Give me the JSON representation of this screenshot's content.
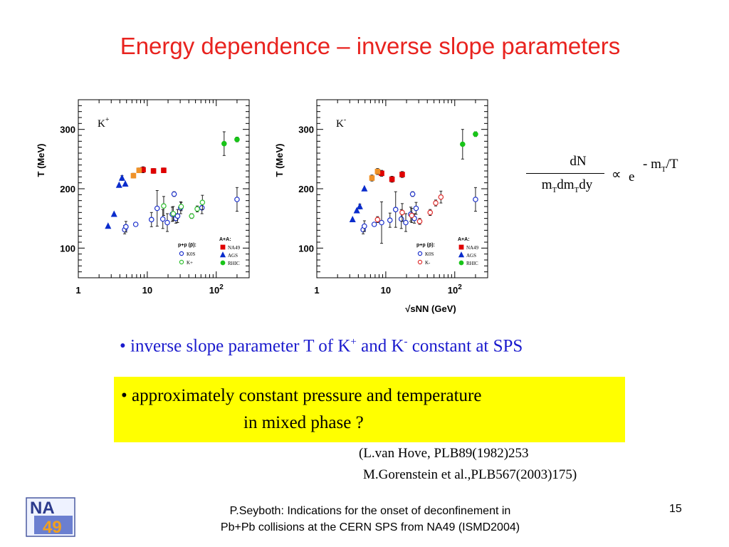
{
  "slide": {
    "title": "Energy dependence – inverse slope parameters",
    "bullet1": {
      "prefix": "• inverse slope parameter T of  K",
      "sup1": "+",
      "mid": " and K",
      "sup2": "-",
      "suffix": " constant at SPS"
    },
    "box_line1": "• approximately constant pressure and temperature",
    "box_line2": "in mixed phase ?",
    "ref1": "(L.van Hove, PLB89(1982)253",
    "ref2": "M.Gorenstein et al.,PLB567(2003)175)",
    "footer_line1": "P.Seyboth: Indications for the onset of deconfinement in",
    "footer_line2": "Pb+Pb collisions at the CERN SPS from NA49   (ISMD2004)",
    "page_number": "15",
    "logo_top": "NA",
    "logo_bottom": "49",
    "formula": {
      "numerator": "dN",
      "den_m1": "m",
      "den_sub1": "T",
      "den_dm": "dm",
      "den_sub2": "T",
      "den_dy": "dy",
      "prop": "∝",
      "e": "e",
      "exp_minus": "- m",
      "exp_sub": "T",
      "exp_tail": "/T"
    }
  },
  "colors": {
    "title": "#e8231f",
    "bullet": "#1a1acd",
    "box": "#ffff00",
    "na49": "#e00000",
    "ags": "#0a2ccc",
    "rhic": "#19c419",
    "orange": "#f09228",
    "pp_k0": "#1a2fcc",
    "pp_kplus": "#2fbf2f",
    "pp_kminus": "#e03030"
  },
  "chart_data": [
    {
      "type": "scatter",
      "label": "K",
      "label_sup": "+",
      "ylabel": "T (MeV)",
      "xlabel": "",
      "xscale": "log",
      "xlim": [
        1,
        300
      ],
      "ylim": [
        50,
        350
      ],
      "x_ticks": [
        "1",
        "10",
        "10^2"
      ],
      "y_ticks": [
        "100",
        "200",
        "300"
      ],
      "legend_pp_title": "p+p (p̄):",
      "legend_aa_title": "A+A:",
      "legend_pp": [
        "K0S",
        "K+"
      ],
      "legend_aa": [
        "NA49",
        "AGS",
        "RHIC"
      ],
      "series": [
        {
          "name": "AGS",
          "marker": "tri",
          "filled": true,
          "color": "#0a2ccc",
          "points": [
            [
              2.7,
              137,
              0
            ],
            [
              3.3,
              157,
              0
            ],
            [
              3.9,
              206,
              0
            ],
            [
              4.3,
              218,
              4
            ],
            [
              4.8,
              208,
              0
            ]
          ]
        },
        {
          "name": "NA49",
          "marker": "square",
          "filled": true,
          "color": "#e00000",
          "points": [
            [
              8.7,
              232,
              5
            ],
            [
              12.3,
              230,
              4
            ],
            [
              17.3,
              231,
              4
            ]
          ]
        },
        {
          "name": "",
          "marker": "square",
          "filled": true,
          "color": "#f09228",
          "points": [
            [
              6.3,
              222,
              4
            ],
            [
              7.6,
              231,
              4
            ]
          ]
        },
        {
          "name": "RHIC",
          "marker": "circle",
          "filled": true,
          "color": "#19c419",
          "points": [
            [
              130,
              276,
              20
            ],
            [
              200,
              283,
              4
            ]
          ]
        },
        {
          "name": "K0S",
          "marker": "circle",
          "filled": false,
          "color": "#1a2fcc",
          "points": [
            [
              4.7,
              131,
              7
            ],
            [
              4.9,
              136,
              9
            ],
            [
              6.8,
              140,
              0
            ],
            [
              11.5,
              148,
              12
            ],
            [
              13.9,
              167,
              30
            ],
            [
              16.8,
              149,
              16
            ],
            [
              19.5,
              143,
              15
            ],
            [
              23,
              157,
              12
            ],
            [
              24.5,
              191,
              4
            ],
            [
              26,
              150,
              8
            ],
            [
              27.5,
              154,
              11
            ],
            [
              30.5,
              168,
              10
            ],
            [
              62,
              168,
              10
            ],
            [
              200,
              182,
              20
            ]
          ]
        },
        {
          "name": "K+",
          "marker": "circle",
          "filled": false,
          "color": "#2fbf2f",
          "points": [
            [
              17.3,
              171,
              16
            ],
            [
              23.8,
              158,
              12
            ],
            [
              31,
              170,
              7
            ],
            [
              44,
              154,
              4
            ],
            [
              53,
              166,
              5
            ],
            [
              63,
              177,
              12
            ]
          ]
        }
      ]
    },
    {
      "type": "scatter",
      "label": "K",
      "label_sup": "-",
      "ylabel": "T (MeV)",
      "xlabel": "√sNN (GeV)",
      "xscale": "log",
      "xlim": [
        1,
        300
      ],
      "ylim": [
        50,
        350
      ],
      "x_ticks": [
        "1",
        "10",
        "10^2"
      ],
      "y_ticks": [
        "100",
        "200",
        "300"
      ],
      "legend_pp_title": "p+p (p̄):",
      "legend_aa_title": "A+A:",
      "legend_pp": [
        "K0S",
        "K-"
      ],
      "legend_aa": [
        "NA49",
        "AGS",
        "RHIC"
      ],
      "series": [
        {
          "name": "AGS",
          "marker": "tri",
          "filled": true,
          "color": "#0a2ccc",
          "points": [
            [
              3.3,
              148,
              0
            ],
            [
              3.8,
              163,
              0
            ],
            [
              4.2,
              170,
              4
            ],
            [
              4.9,
              200,
              0
            ]
          ]
        },
        {
          "name": "NA49",
          "marker": "square",
          "filled": true,
          "color": "#e00000",
          "points": [
            [
              8.7,
              226,
              5
            ],
            [
              12.3,
              216,
              5
            ],
            [
              17.3,
              224,
              5
            ]
          ]
        },
        {
          "name": "",
          "marker": "square",
          "filled": true,
          "color": "#f09228",
          "points": [
            [
              6.3,
              218,
              5
            ],
            [
              7.6,
              229,
              5
            ]
          ]
        },
        {
          "name": "RHIC",
          "marker": "circle",
          "filled": true,
          "color": "#19c419",
          "points": [
            [
              130,
              275,
              25
            ],
            [
              200,
              292,
              4
            ]
          ]
        },
        {
          "name": "K0S",
          "marker": "circle",
          "filled": false,
          "color": "#1a2fcc",
          "points": [
            [
              4.7,
              131,
              7
            ],
            [
              4.9,
              137,
              9
            ],
            [
              6.8,
              140,
              0
            ],
            [
              8.7,
              143,
              35
            ],
            [
              11.5,
              147,
              12
            ],
            [
              13.9,
              165,
              30
            ],
            [
              16.8,
              149,
              16
            ],
            [
              19.5,
              143,
              15
            ],
            [
              23,
              157,
              12
            ],
            [
              24.5,
              191,
              4
            ],
            [
              26,
              150,
              8
            ],
            [
              27.5,
              167,
              10
            ],
            [
              200,
              182,
              20
            ]
          ]
        },
        {
          "name": "K-",
          "marker": "circle",
          "filled": false,
          "color": "#e03030",
          "points": [
            [
              7.6,
              148,
              5
            ],
            [
              17.3,
              160,
              15
            ],
            [
              23.8,
              155,
              12
            ],
            [
              31,
              145,
              5
            ],
            [
              44,
              160,
              5
            ],
            [
              53,
              176,
              5
            ],
            [
              63,
              186,
              10
            ]
          ]
        }
      ]
    }
  ]
}
